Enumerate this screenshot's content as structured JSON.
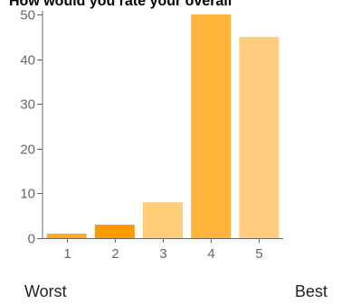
{
  "chart_data": {
    "type": "bar",
    "title": "How would you rate your overall",
    "categories": [
      "1",
      "2",
      "3",
      "4",
      "5"
    ],
    "values": [
      1,
      3,
      8,
      50,
      45
    ],
    "ylim": [
      0,
      50
    ],
    "yticks": [
      0,
      10,
      20,
      30,
      40,
      50
    ],
    "grid": false,
    "legend": "none",
    "bar_colors": [
      "#FFAA22",
      "#FF9900",
      "#FFCC77",
      "#FFB43C",
      "#FFCC80"
    ],
    "axis_color": "#666666",
    "scale_labels": {
      "low": "Worst",
      "high": "Best"
    }
  }
}
